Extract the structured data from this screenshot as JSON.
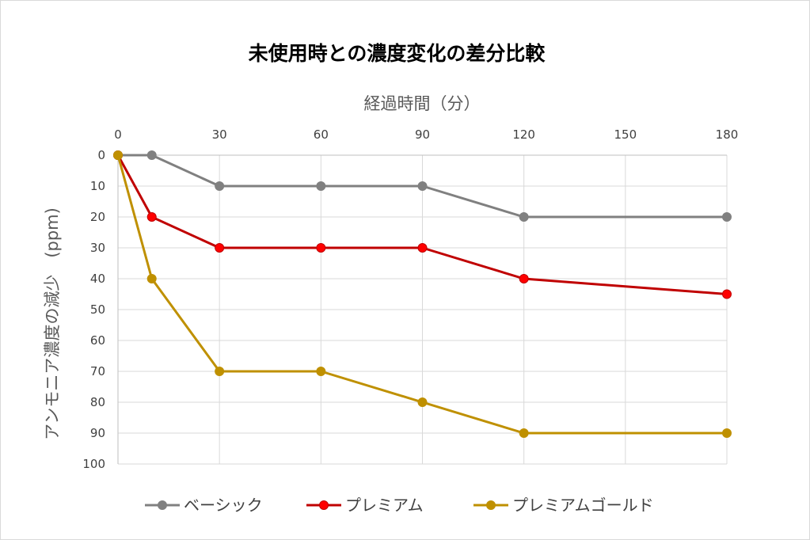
{
  "chart_data": {
    "type": "line",
    "title": "未使用時との濃度変化の差分比較",
    "xlabel": "経過時間（分）",
    "ylabel": "アンモニア濃度の減少　(ppm)",
    "x_axis_position": "top",
    "y_axis_reversed": true,
    "xlim": [
      0,
      180
    ],
    "ylim": [
      0,
      100
    ],
    "x_ticks": [
      0,
      30,
      60,
      90,
      120,
      150,
      180
    ],
    "y_ticks": [
      0,
      10,
      20,
      30,
      40,
      50,
      60,
      70,
      80,
      90,
      100
    ],
    "grid": true,
    "legend": "bottom",
    "x": [
      0,
      10,
      30,
      60,
      90,
      120,
      180
    ],
    "series": [
      {
        "name": "ベーシック",
        "color": "#808080",
        "values": [
          0,
          0,
          10,
          10,
          10,
          20,
          20
        ]
      },
      {
        "name": "プレミアム",
        "color": "#c00000",
        "marker_color": "#ff0000",
        "values": [
          0,
          20,
          30,
          30,
          30,
          40,
          45
        ]
      },
      {
        "name": "プレミアムゴールド",
        "color": "#bf9000",
        "values": [
          0,
          40,
          70,
          70,
          80,
          90,
          90
        ]
      }
    ]
  }
}
